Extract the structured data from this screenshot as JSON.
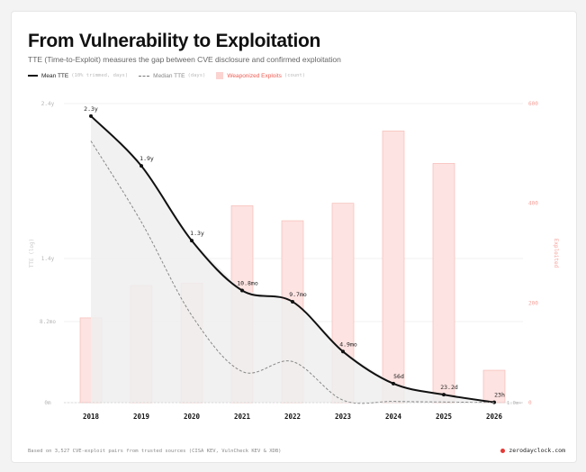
{
  "header": {
    "title": "From Vulnerability to Exploitation",
    "subtitle": "TTE (Time-to-Exploit) measures the gap between CVE disclosure and confirmed exploitation"
  },
  "legend": {
    "mean_label": "Mean TTE",
    "mean_note": "(10% trimmed, days)",
    "median_label": "Median TTE",
    "median_note": "(days)",
    "bars_label": "Weaponized Exploits",
    "bars_note": "(count)"
  },
  "footer": {
    "source": "Based on 3,527 CVE-exploit pairs from trusted sources (CISA KEV, VulnCheck KEV & XDB)",
    "brand": "zerodayclock.com"
  },
  "colors": {
    "mean_line": "#111111",
    "median_line": "#888888",
    "area_fill": "#efefef",
    "bar_fill": "#fde3e1",
    "bar_stroke": "#f5b4ae",
    "right_axis": "#f5a19a",
    "footer_dot": "#e53935"
  },
  "chart_data": {
    "type": "line",
    "categories": [
      "2018",
      "2019",
      "2020",
      "2021",
      "2022",
      "2023",
      "2024",
      "2025",
      "2026"
    ],
    "series": [
      {
        "name": "Mean TTE",
        "axis": "left",
        "unit": "years",
        "values": [
          2.3,
          1.9,
          1.3,
          0.9,
          0.81,
          0.41,
          0.153,
          0.064,
          0.0026
        ],
        "labels": [
          "2.3y",
          "1.9y",
          "1.3y",
          "10.8mo",
          "9.7mo",
          "4.9mo",
          "56d",
          "23.2d",
          "23h"
        ]
      },
      {
        "name": "Median TTE",
        "axis": "left",
        "unit": "years",
        "values": [
          2.1,
          1.45,
          0.7,
          0.25,
          0.33,
          0.02,
          0.01,
          0.005,
          0.002
        ]
      },
      {
        "name": "Weaponized Exploits",
        "axis": "right",
        "type": "bar",
        "values": [
          170,
          235,
          240,
          395,
          365,
          400,
          545,
          480,
          65
        ]
      }
    ],
    "left_axis": {
      "label": "TTE (log)",
      "ticks": [
        "2.4y",
        "1.4y",
        "8.2mo",
        "0m"
      ],
      "ylim": [
        0,
        2.4
      ]
    },
    "right_axis": {
      "label": "Exploited",
      "ticks": [
        "600",
        "400",
        "200",
        "0"
      ],
      "ylim": [
        0,
        600
      ]
    },
    "extra_label": "1.0m+"
  }
}
